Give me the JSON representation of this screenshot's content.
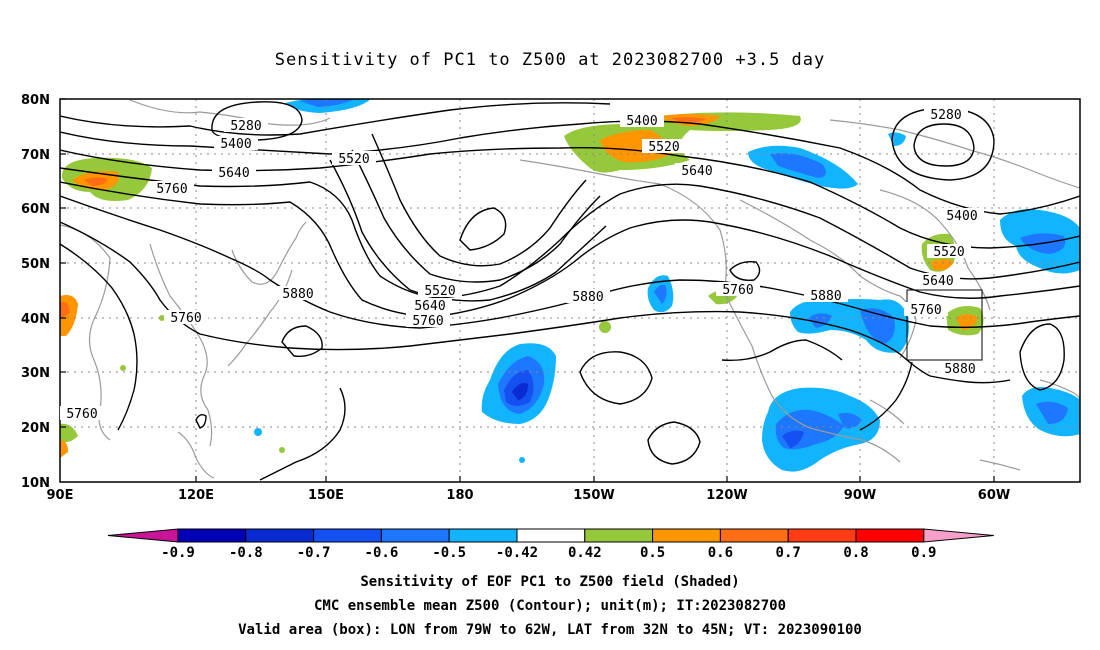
{
  "title": "Sensitivity of PC1 to Z500 at 2023082700 +3.5 day",
  "lat_labels": [
    "80N",
    "70N",
    "60N",
    "50N",
    "40N",
    "30N",
    "20N",
    "10N"
  ],
  "lon_labels": [
    "90E",
    "120E",
    "150E",
    "180",
    "150W",
    "120W",
    "90W",
    "60W"
  ],
  "contour_labels": [
    {
      "text": "5280"
    },
    {
      "text": "5400"
    },
    {
      "text": "5520"
    },
    {
      "text": "5640"
    },
    {
      "text": "5760"
    },
    {
      "text": "5880"
    },
    {
      "text": "5760"
    },
    {
      "text": "5520"
    },
    {
      "text": "5640"
    },
    {
      "text": "5760"
    },
    {
      "text": "5880"
    },
    {
      "text": "5400"
    },
    {
      "text": "5520"
    },
    {
      "text": "5640"
    },
    {
      "text": "5760"
    },
    {
      "text": "5880"
    },
    {
      "text": "5760"
    },
    {
      "text": "5400"
    },
    {
      "text": "5520"
    },
    {
      "text": "5640"
    },
    {
      "text": "5760"
    },
    {
      "text": "5880"
    },
    {
      "text": "5280"
    }
  ],
  "colorbar": {
    "labels": [
      "-0.9",
      "-0.8",
      "-0.7",
      "-0.6",
      "-0.5",
      "-0.42",
      "0.42",
      "0.5",
      "0.6",
      "0.7",
      "0.8",
      "0.9"
    ],
    "colors": [
      "#0000b4",
      "#0a2ad2",
      "#1550f0",
      "#1e78ff",
      "#12b4ff",
      "#ffffff",
      "#96c83c",
      "#ff9600",
      "#ff6e14",
      "#ff3c14",
      "#ff0000"
    ],
    "end_low": "#c81496",
    "end_high": "#f5a0c8"
  },
  "captions": [
    "Sensitivity of EOF PC1 to Z500 field (Shaded)",
    "CMC ensemble mean Z500 (Contour); unit(m); IT:2023082700",
    "Valid area (box): LON from 79W to 62W, LAT from 32N to 45N; VT: 2023090100"
  ]
}
